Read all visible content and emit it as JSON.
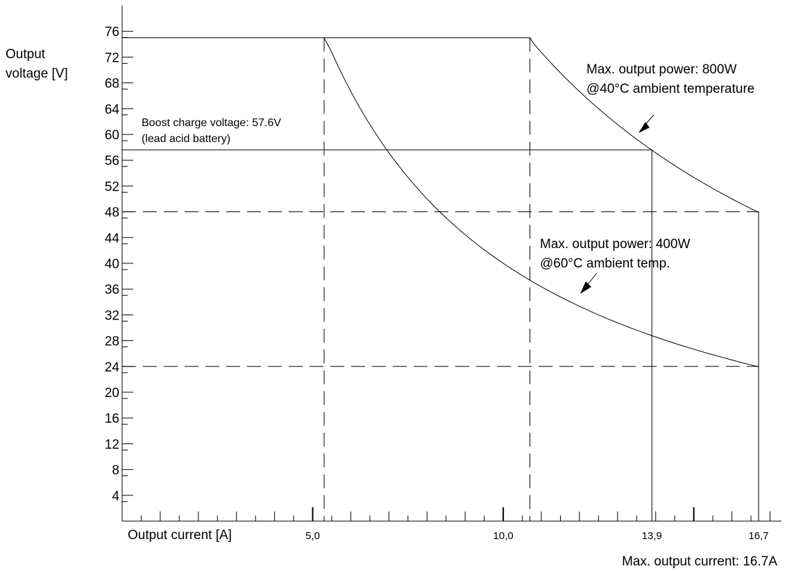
{
  "chart_data": {
    "type": "line",
    "title": "",
    "ylabel_line1": "Output",
    "ylabel_line2": "voltage [V]",
    "xlabel": "Output current [A]",
    "footer_note": "Max. output current: 16.7A",
    "y_ticks": [
      4,
      8,
      12,
      16,
      20,
      24,
      28,
      32,
      36,
      40,
      44,
      48,
      52,
      56,
      60,
      64,
      68,
      72,
      76
    ],
    "x_tick_labels": [
      "5,0",
      "10,0",
      "13,9",
      "16,7"
    ],
    "xlim": [
      0,
      17.3
    ],
    "ylim": [
      0,
      80
    ],
    "grid": false,
    "series": [
      {
        "name": "Max. output power: 800W @40°C ambient temperature",
        "x": [
          0,
          10.7,
          11.5,
          12.5,
          13.9,
          15.0,
          16.0,
          16.7
        ],
        "y": [
          75,
          75,
          69.6,
          64.0,
          57.6,
          53.3,
          50.0,
          48
        ]
      },
      {
        "name": "Max. output power: 400W @60°C ambient temperature",
        "x": [
          0,
          5.3,
          6.0,
          7.0,
          8.0,
          10.0,
          12.0,
          13.9,
          15.0,
          16.7
        ],
        "y": [
          75,
          75,
          66.7,
          57.1,
          50.0,
          40.0,
          33.3,
          28.8,
          26.7,
          24
        ]
      },
      {
        "name": "Boost charge voltage 57.6V",
        "x": [
          0,
          13.9,
          13.9
        ],
        "y": [
          57.6,
          57.6,
          0
        ]
      },
      {
        "name": "Max. output current 16.7A",
        "x": [
          16.7,
          16.7
        ],
        "y": [
          48,
          0
        ]
      }
    ],
    "reference_lines": [
      {
        "axis": "y",
        "value": 48,
        "style": "dashed"
      },
      {
        "axis": "y",
        "value": 24,
        "style": "dashed"
      },
      {
        "axis": "x",
        "value": 5.3,
        "style": "dashed"
      },
      {
        "axis": "x",
        "value": 10.7,
        "style": "dashed"
      }
    ],
    "annotations": {
      "boost_line1": "Boost charge voltage: 57.6V",
      "boost_line2": "(lead acid battery)",
      "p800_line1": "Max. output power: 800W",
      "p800_line2": "@40°C ambient temperature",
      "p400_line1": "Max. output power: 400W",
      "p400_line2": "@60°C ambient temp."
    }
  }
}
